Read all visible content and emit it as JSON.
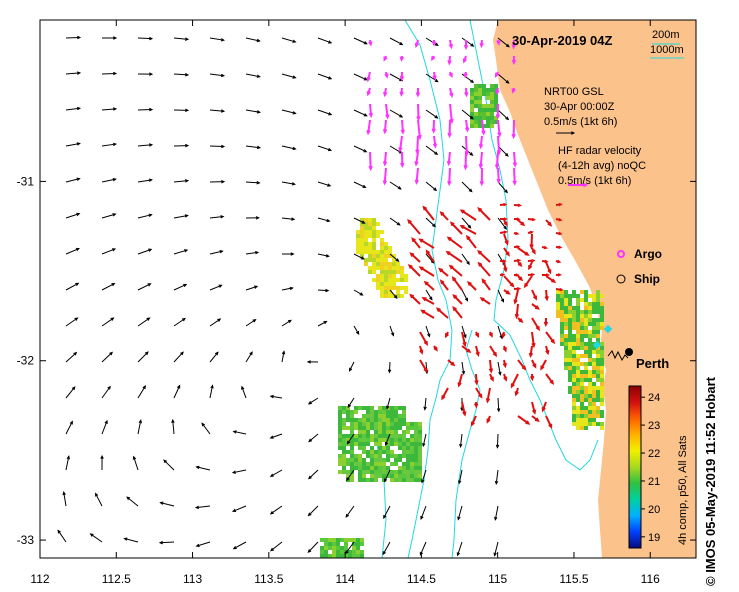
{
  "map": {
    "title": "30-Apr-2019 04Z",
    "x_axis": {
      "ticks": [
        "112",
        "112.5",
        "113",
        "113.5",
        "114",
        "114.5",
        "115",
        "115.5",
        "116"
      ],
      "values": [
        112,
        112.5,
        113,
        113.5,
        114,
        114.5,
        115,
        115.5,
        116
      ],
      "range": [
        112,
        116.3
      ]
    },
    "y_axis": {
      "ticks": [
        "-31",
        "-32",
        "-33"
      ],
      "values": [
        -31,
        -32,
        -33
      ],
      "range": [
        -33.1,
        -30.1
      ]
    },
    "depth_legend": {
      "contour_200": "200m",
      "contour_1000": "1000m",
      "contour_color": "#22d8e0"
    },
    "model_legend": {
      "line1": "NRT00 GSL",
      "line2": "30-Apr 00:00Z",
      "line3": "0.5m/s (1kt 6h)",
      "arrow_color": "#000000"
    },
    "radar_legend": {
      "line1": "HF radar velocity",
      "line2": "(4-12h avg) noQC",
      "line3": "0.5m/s (1kt 6h)",
      "arrow_color": "#ff33ff"
    },
    "markers": {
      "argo": "Argo",
      "ship": "Ship",
      "city": "Perth"
    },
    "land_color": "#fcc28c",
    "colorbar": {
      "ticks": [
        "19",
        "20",
        "21",
        "22",
        "23",
        "24"
      ],
      "min": 18.6,
      "max": 24.4,
      "caption": "4h comp, p50, All Sats",
      "colors": [
        "#0a0a7a",
        "#0040ff",
        "#00b0ff",
        "#00d0a0",
        "#30c040",
        "#a8d820",
        "#f0f000",
        "#ffb000",
        "#ff6000",
        "#d01010",
        "#8a0000"
      ]
    }
  },
  "credit": "© IMOS 05-May-2019 11:52 Hobart"
}
